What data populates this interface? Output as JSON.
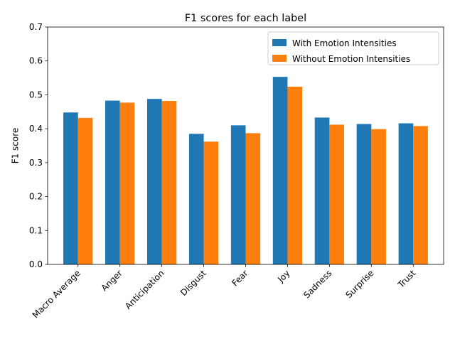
{
  "chart_data": {
    "type": "bar",
    "title": "F1 scores for each label",
    "xlabel": "",
    "ylabel": "F1 score",
    "ylim": [
      0,
      0.7
    ],
    "yticks": [
      "0.0",
      "0.1",
      "0.2",
      "0.3",
      "0.4",
      "0.5",
      "0.6",
      "0.7"
    ],
    "grid": false,
    "legend_position": "top-right",
    "categories": [
      "Macro Average",
      "Anger",
      "Anticipation",
      "Disgust",
      "Fear",
      "Joy",
      "Sadness",
      "Surprise",
      "Trust"
    ],
    "series": [
      {
        "name": "With Emotion Intensities",
        "color": "#1f77b4",
        "values": [
          0.448,
          0.483,
          0.488,
          0.385,
          0.41,
          0.553,
          0.433,
          0.414,
          0.416
        ]
      },
      {
        "name": "Without Emotion Intensities",
        "color": "#ff7f0e",
        "values": [
          0.432,
          0.477,
          0.482,
          0.362,
          0.387,
          0.524,
          0.412,
          0.399,
          0.408
        ]
      }
    ]
  }
}
